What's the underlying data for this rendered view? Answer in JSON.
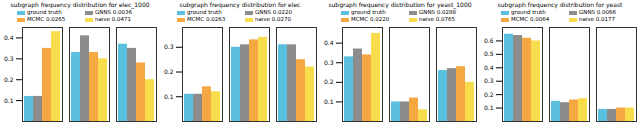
{
  "chart_data": [
    {
      "type": "bar",
      "title": "subgraph frequency distribution for elec_1000",
      "categories": [
        null,
        null,
        null
      ],
      "series": [
        {
          "name": "ground truth",
          "color": "#5bc0de",
          "values": [
            0.12,
            0.33,
            0.37
          ]
        },
        {
          "name": "GNNS 0.0036",
          "color": "#8c8c8c",
          "values": [
            0.12,
            0.41,
            0.35
          ]
        },
        {
          "name": "MCMC 0.0265",
          "color": "#f5a742",
          "values": [
            0.35,
            0.33,
            0.28
          ]
        },
        {
          "name": "naive 0.0471",
          "color": "#f7dc4b",
          "values": [
            0.43,
            0.3,
            0.2
          ]
        }
      ],
      "ylim": [
        0,
        0.45
      ],
      "yticks": [
        0.1,
        0.2,
        0.3,
        0.4
      ],
      "legend": "top-left"
    },
    {
      "type": "bar",
      "title": "subgraph frequency distribution for elec",
      "categories": [
        null,
        null,
        null
      ],
      "series": [
        {
          "name": "ground truth",
          "color": "#5bc0de",
          "values": [
            0.11,
            0.3,
            0.31
          ]
        },
        {
          "name": "GNNS 0.0220",
          "color": "#8c8c8c",
          "values": [
            0.11,
            0.31,
            0.31
          ]
        },
        {
          "name": "MCMC 0.0263",
          "color": "#f5a742",
          "values": [
            0.14,
            0.33,
            0.25
          ]
        },
        {
          "name": "naive 0.0270",
          "color": "#f7dc4b",
          "values": [
            0.12,
            0.34,
            0.22
          ]
        }
      ],
      "ylim": [
        0,
        0.38
      ],
      "yticks": [
        0.1,
        0.2,
        0.3
      ],
      "legend": "top-left"
    },
    {
      "type": "bar",
      "title": "subgraph frequency distribution for yeast_1000",
      "categories": [
        null,
        null,
        null
      ],
      "series": [
        {
          "name": "ground truth",
          "color": "#5bc0de",
          "values": [
            0.33,
            0.1,
            0.26
          ]
        },
        {
          "name": "GNNS 0.0288",
          "color": "#8c8c8c",
          "values": [
            0.37,
            0.1,
            0.27
          ]
        },
        {
          "name": "MCMC 0.0220",
          "color": "#f5a742",
          "values": [
            0.34,
            0.12,
            0.28
          ]
        },
        {
          "name": "naive 0.0765",
          "color": "#f7dc4b",
          "values": [
            0.45,
            0.06,
            0.2
          ]
        }
      ],
      "ylim": [
        0,
        0.48
      ],
      "yticks": [
        0.1,
        0.2,
        0.3,
        0.4
      ],
      "legend": "top-right"
    },
    {
      "type": "bar",
      "title": "subgraph frequency distribution for yeast",
      "categories": [
        null,
        null,
        null
      ],
      "series": [
        {
          "name": "ground truth",
          "color": "#5bc0de",
          "values": [
            0.65,
            0.15,
            0.09
          ]
        },
        {
          "name": "GNNS 0.0066",
          "color": "#8c8c8c",
          "values": [
            0.64,
            0.14,
            0.09
          ]
        },
        {
          "name": "MCMC 0.0064",
          "color": "#f5a742",
          "values": [
            0.62,
            0.16,
            0.1
          ]
        },
        {
          "name": "naive 0.0177",
          "color": "#f7dc4b",
          "values": [
            0.6,
            0.17,
            0.1
          ]
        }
      ],
      "ylim": [
        0,
        0.7
      ],
      "yticks": [
        0.1,
        0.2,
        0.3,
        0.4,
        0.5,
        0.6
      ],
      "legend": "top-right"
    }
  ]
}
